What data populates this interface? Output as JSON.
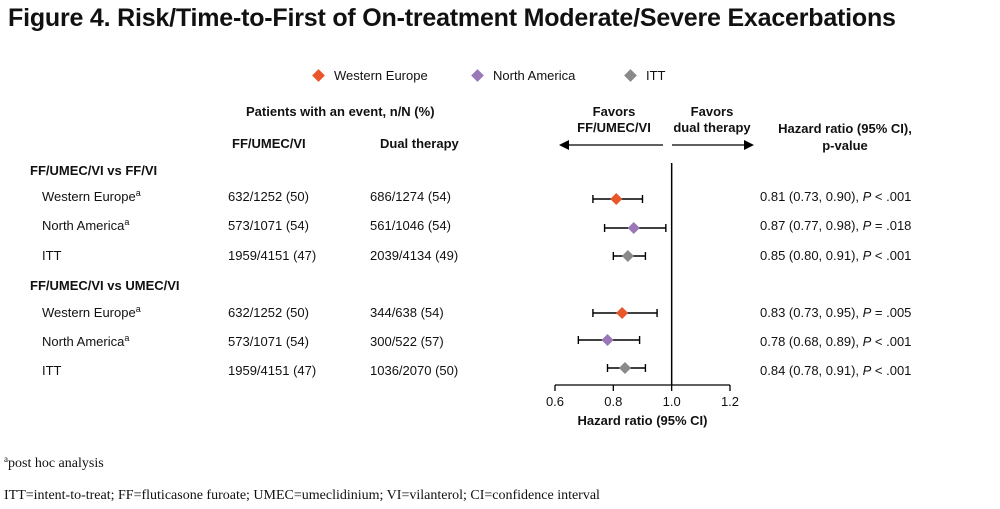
{
  "title": "Figure 4. Risk/Time-to-First of On-treatment Moderate/Severe Exacerbations",
  "legend": [
    {
      "label": "Western Europe",
      "color": "#e8562a"
    },
    {
      "label": "North America",
      "color": "#9a78b8"
    },
    {
      "label": "ITT",
      "color": "#8a8a8a"
    }
  ],
  "headers": {
    "patients": "Patients with an event, n/N (%)",
    "col_ff": "FF/UMEC/VI",
    "col_dual": "Dual therapy",
    "favors_left_1": "Favors",
    "favors_left_2": "FF/UMEC/VI",
    "favors_right_1": "Favors",
    "favors_right_2": "dual therapy",
    "hr_1": "Hazard ratio (95% CI),",
    "hr_2": "p-value"
  },
  "sections": [
    {
      "title": "FF/UMEC/VI vs FF/VI",
      "rows": [
        {
          "label": "Western Europe",
          "sup": "a",
          "ff": "632/1252 (50)",
          "dual": "686/1274 (54)",
          "hr_text": "0.81 (0.73, 0.90), ",
          "p_label": "P",
          "p_text": " < .001"
        },
        {
          "label": "North America",
          "sup": "a",
          "ff": "573/1071 (54)",
          "dual": "561/1046 (54)",
          "hr_text": "0.87 (0.77, 0.98), ",
          "p_label": "P",
          "p_text": " = .018"
        },
        {
          "label": "ITT",
          "sup": "",
          "ff": "1959/4151 (47)",
          "dual": "2039/4134 (49)",
          "hr_text": "0.85 (0.80, 0.91), ",
          "p_label": "P",
          "p_text": " < .001"
        }
      ]
    },
    {
      "title": "FF/UMEC/VI vs UMEC/VI",
      "rows": [
        {
          "label": "Western Europe",
          "sup": "a",
          "ff": "632/1252 (50)",
          "dual": "344/638 (54)",
          "hr_text": "0.83 (0.73, 0.95), ",
          "p_label": "P",
          "p_text": " = .005"
        },
        {
          "label": "North America",
          "sup": "a",
          "ff": "573/1071 (54)",
          "dual": "300/522 (57)",
          "hr_text": "0.78 (0.68, 0.89), ",
          "p_label": "P",
          "p_text": " < .001"
        },
        {
          "label": "ITT",
          "sup": "",
          "ff": "1959/4151 (47)",
          "dual": "1036/2070 (50)",
          "hr_text": "0.84 (0.78, 0.91), ",
          "p_label": "P",
          "p_text": " < .001"
        }
      ]
    }
  ],
  "footnotes": {
    "a_sup": "a",
    "a_text": "post hoc analysis",
    "abbrev": "ITT=intent-to-treat; FF=fluticasone furoate; UMEC=umeclidinium; VI=vilanterol; CI=confidence interval"
  },
  "chart_data": {
    "type": "forest",
    "xlabel": "Hazard ratio (95% CI)",
    "xlim": [
      0.6,
      1.2
    ],
    "xticks": [
      0.6,
      0.8,
      1.0,
      1.2
    ],
    "xtick_labels": [
      "0.6",
      "0.8",
      "1.0",
      "1.2"
    ],
    "reference_line": 1.0,
    "series": [
      "Western Europe",
      "North America",
      "ITT"
    ],
    "points": [
      {
        "section": "FF/UMEC/VI vs FF/VI",
        "group": "Western Europe",
        "hr": 0.81,
        "lo": 0.73,
        "hi": 0.9
      },
      {
        "section": "FF/UMEC/VI vs FF/VI",
        "group": "North America",
        "hr": 0.87,
        "lo": 0.77,
        "hi": 0.98
      },
      {
        "section": "FF/UMEC/VI vs FF/VI",
        "group": "ITT",
        "hr": 0.85,
        "lo": 0.8,
        "hi": 0.91
      },
      {
        "section": "FF/UMEC/VI vs UMEC/VI",
        "group": "Western Europe",
        "hr": 0.83,
        "lo": 0.73,
        "hi": 0.95
      },
      {
        "section": "FF/UMEC/VI vs UMEC/VI",
        "group": "North America",
        "hr": 0.78,
        "lo": 0.68,
        "hi": 0.89
      },
      {
        "section": "FF/UMEC/VI vs UMEC/VI",
        "group": "ITT",
        "hr": 0.84,
        "lo": 0.78,
        "hi": 0.91
      }
    ]
  }
}
